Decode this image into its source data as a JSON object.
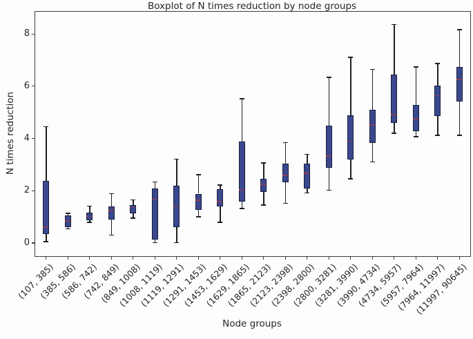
{
  "chart_data": {
    "type": "boxplot",
    "title": "Boxplot of N times reduction by node groups",
    "xlabel": "Node groups",
    "ylabel": "N times reduction",
    "ylim": [
      -0.5,
      8.85
    ],
    "yticks": [
      0,
      2,
      4,
      6,
      8
    ],
    "grid": false,
    "legend": null,
    "categories": [
      "(107, 385)",
      "(385, 586)",
      "(586, 742)",
      "(742, 849)",
      "(849, 1008)",
      "(1008, 1119)",
      "(1119, 1291)",
      "(1291, 1453)",
      "(1453, 1629)",
      "(1629, 1865)",
      "(1865, 2123)",
      "(2123, 2398)",
      "(2398, 2800)",
      "(2800, 3281)",
      "(3281, 3990)",
      "(3990, 4734)",
      "(4734, 5957)",
      "(5957, 7964)",
      "(7964, 11997)",
      "(11997, 90645)"
    ],
    "boxes": [
      {
        "whislo": 0.05,
        "q1": 0.35,
        "med": 0.61,
        "q3": 2.39,
        "whishi": 4.45
      },
      {
        "whislo": 0.54,
        "q1": 0.61,
        "med": 0.84,
        "q3": 1.06,
        "whishi": 1.14
      },
      {
        "whislo": 0.79,
        "q1": 0.88,
        "med": 1.02,
        "q3": 1.17,
        "whishi": 1.41
      },
      {
        "whislo": 0.31,
        "q1": 0.91,
        "med": 1.25,
        "q3": 1.39,
        "whishi": 1.89
      },
      {
        "whislo": 0.95,
        "q1": 1.14,
        "med": 1.36,
        "q3": 1.45,
        "whishi": 1.65
      },
      {
        "whislo": 0.02,
        "q1": 0.14,
        "med": 1.68,
        "q3": 2.09,
        "whishi": 2.34
      },
      {
        "whislo": 0.02,
        "q1": 0.6,
        "med": 1.39,
        "q3": 2.2,
        "whishi": 3.21
      },
      {
        "whislo": 1.01,
        "q1": 1.26,
        "med": 1.63,
        "q3": 1.89,
        "whishi": 2.62
      },
      {
        "whislo": 0.79,
        "q1": 1.41,
        "med": 1.58,
        "q3": 2.07,
        "whishi": 2.22
      },
      {
        "whislo": 1.32,
        "q1": 1.59,
        "med": 2.03,
        "q3": 3.88,
        "whishi": 5.52
      },
      {
        "whislo": 1.46,
        "q1": 1.96,
        "med": 2.24,
        "q3": 2.45,
        "whishi": 3.06
      },
      {
        "whislo": 1.52,
        "q1": 2.33,
        "med": 2.59,
        "q3": 3.03,
        "whishi": 3.85
      },
      {
        "whislo": 1.92,
        "q1": 2.09,
        "med": 2.66,
        "q3": 3.04,
        "whishi": 3.4
      },
      {
        "whislo": 2.02,
        "q1": 2.88,
        "med": 3.32,
        "q3": 4.49,
        "whishi": 6.34
      },
      {
        "whislo": 2.46,
        "q1": 3.21,
        "med": 3.9,
        "q3": 4.88,
        "whishi": 7.11
      },
      {
        "whislo": 3.11,
        "q1": 3.83,
        "med": 4.51,
        "q3": 5.11,
        "whishi": 6.64
      },
      {
        "whislo": 4.2,
        "q1": 4.6,
        "med": 4.91,
        "q3": 6.45,
        "whishi": 8.36
      },
      {
        "whislo": 4.07,
        "q1": 4.29,
        "med": 4.75,
        "q3": 5.28,
        "whishi": 6.74
      },
      {
        "whislo": 4.12,
        "q1": 4.85,
        "med": 5.64,
        "q3": 6.02,
        "whishi": 6.87
      },
      {
        "whislo": 4.12,
        "q1": 5.41,
        "med": 6.27,
        "q3": 6.73,
        "whishi": 8.16
      }
    ],
    "colors": {
      "box_fill": "#3a488d",
      "box_edge": "#171c3d",
      "median": "#b73a3a",
      "whisker": "#1e1e1e",
      "spine": "#3c3c3c",
      "text": "#262626",
      "background": "#fdfdfd"
    }
  }
}
